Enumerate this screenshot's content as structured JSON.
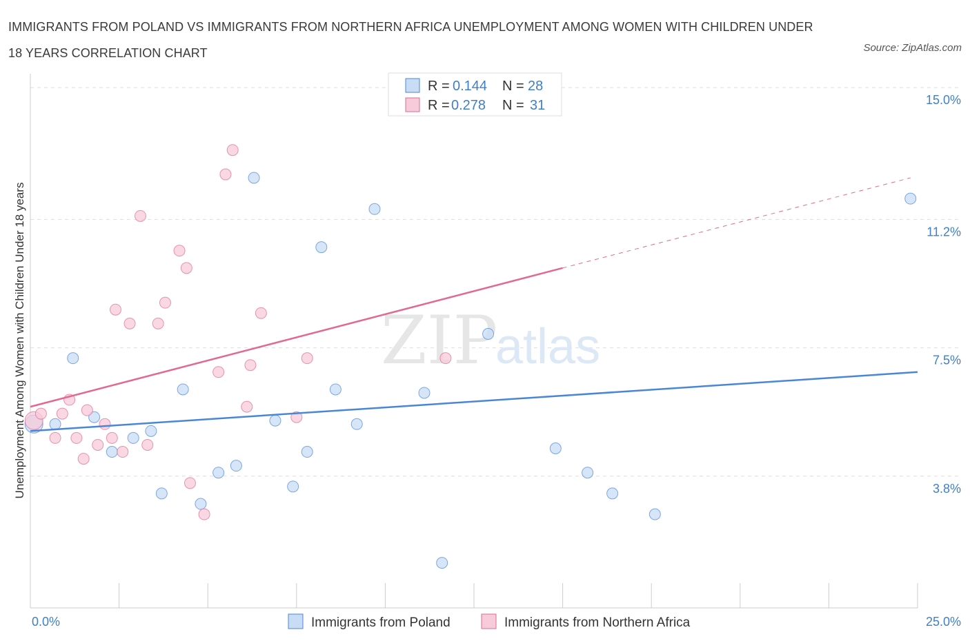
{
  "header": {
    "title": "IMMIGRANTS FROM POLAND VS IMMIGRANTS FROM NORTHERN AFRICA UNEMPLOYMENT AMONG WOMEN WITH CHILDREN UNDER 18 YEARS CORRELATION CHART",
    "source": "Source: ZipAtlas.com"
  },
  "watermark": {
    "zip": "ZIP",
    "atlas": "atlas"
  },
  "stats_legend": {
    "r_label": "R =",
    "n_label": "N =",
    "rows": [
      {
        "r": "0.144",
        "n": "28"
      },
      {
        "r": "0.278",
        "n": "31"
      }
    ]
  },
  "colors": {
    "poland": "#4a86d8",
    "poland_fill": "#c9dcf5",
    "africa": "#e06a91",
    "africa_fill": "#f7cbd9",
    "axis_text": "#3f7fc7",
    "grid": "#dddddd"
  },
  "chart_data": {
    "type": "scatter",
    "title": "IMMIGRANTS FROM POLAND VS IMMIGRANTS FROM NORTHERN AFRICA UNEMPLOYMENT AMONG WOMEN WITH CHILDREN UNDER 18 YEARS CORRELATION CHART",
    "xlabel": "",
    "ylabel": "Unemployment Among Women with Children Under 18 years",
    "xlim": [
      0,
      25
    ],
    "ylim": [
      0,
      15.4
    ],
    "x_tick_labels": [
      "0.0%",
      "25.0%"
    ],
    "y_ticks": [
      {
        "value": 3.8,
        "label": "3.8%"
      },
      {
        "value": 7.5,
        "label": "7.5%"
      },
      {
        "value": 11.2,
        "label": "11.2%"
      },
      {
        "value": 15.0,
        "label": "15.0%"
      }
    ],
    "grid": "horizontal dashed",
    "legend_position": "bottom",
    "series": [
      {
        "name": "Immigrants from Poland",
        "color": "#4a86d8",
        "trend": {
          "x0": 0,
          "y0": 5.1,
          "x1": 25,
          "y1": 6.8
        },
        "points": [
          [
            0.1,
            5.3
          ],
          [
            0.7,
            5.3
          ],
          [
            1.2,
            7.2
          ],
          [
            1.8,
            5.5
          ],
          [
            2.3,
            4.5
          ],
          [
            2.9,
            4.9
          ],
          [
            3.4,
            5.1
          ],
          [
            3.7,
            3.3
          ],
          [
            4.3,
            6.3
          ],
          [
            4.8,
            3.0
          ],
          [
            5.3,
            3.9
          ],
          [
            5.8,
            4.1
          ],
          [
            6.3,
            12.4
          ],
          [
            6.9,
            5.4
          ],
          [
            7.4,
            3.5
          ],
          [
            7.8,
            4.5
          ],
          [
            8.2,
            10.4
          ],
          [
            8.6,
            6.3
          ],
          [
            9.2,
            5.3
          ],
          [
            9.7,
            11.5
          ],
          [
            11.1,
            6.2
          ],
          [
            11.6,
            1.3
          ],
          [
            12.9,
            7.9
          ],
          [
            14.8,
            4.6
          ],
          [
            15.7,
            3.9
          ],
          [
            16.4,
            3.3
          ],
          [
            17.6,
            2.7
          ],
          [
            24.8,
            11.8
          ]
        ]
      },
      {
        "name": "Immigrants from Northern Africa",
        "color": "#e06a91",
        "trend": {
          "x0": 0,
          "y0": 5.8,
          "x1": 15,
          "y1": 9.8,
          "dash_to_x": 24.8,
          "dash_to_y": 12.4
        },
        "points": [
          [
            0.1,
            5.4
          ],
          [
            0.3,
            5.6
          ],
          [
            0.7,
            4.9
          ],
          [
            0.9,
            5.6
          ],
          [
            1.1,
            6.0
          ],
          [
            1.3,
            4.9
          ],
          [
            1.5,
            4.3
          ],
          [
            1.6,
            5.7
          ],
          [
            1.9,
            4.7
          ],
          [
            2.1,
            5.3
          ],
          [
            2.3,
            4.9
          ],
          [
            2.4,
            8.6
          ],
          [
            2.6,
            4.5
          ],
          [
            2.8,
            8.2
          ],
          [
            3.1,
            11.3
          ],
          [
            3.3,
            4.7
          ],
          [
            3.6,
            8.2
          ],
          [
            3.8,
            8.8
          ],
          [
            4.2,
            10.3
          ],
          [
            4.4,
            9.8
          ],
          [
            4.5,
            3.6
          ],
          [
            4.9,
            2.7
          ],
          [
            5.3,
            6.8
          ],
          [
            5.5,
            12.5
          ],
          [
            5.7,
            13.2
          ],
          [
            6.1,
            5.8
          ],
          [
            6.2,
            7.0
          ],
          [
            6.5,
            8.5
          ],
          [
            7.5,
            5.5
          ],
          [
            7.8,
            7.2
          ],
          [
            11.7,
            7.2
          ]
        ]
      }
    ]
  },
  "bottom_legend": {
    "items": [
      {
        "label": "Immigrants from Poland"
      },
      {
        "label": "Immigrants from Northern Africa"
      }
    ]
  }
}
